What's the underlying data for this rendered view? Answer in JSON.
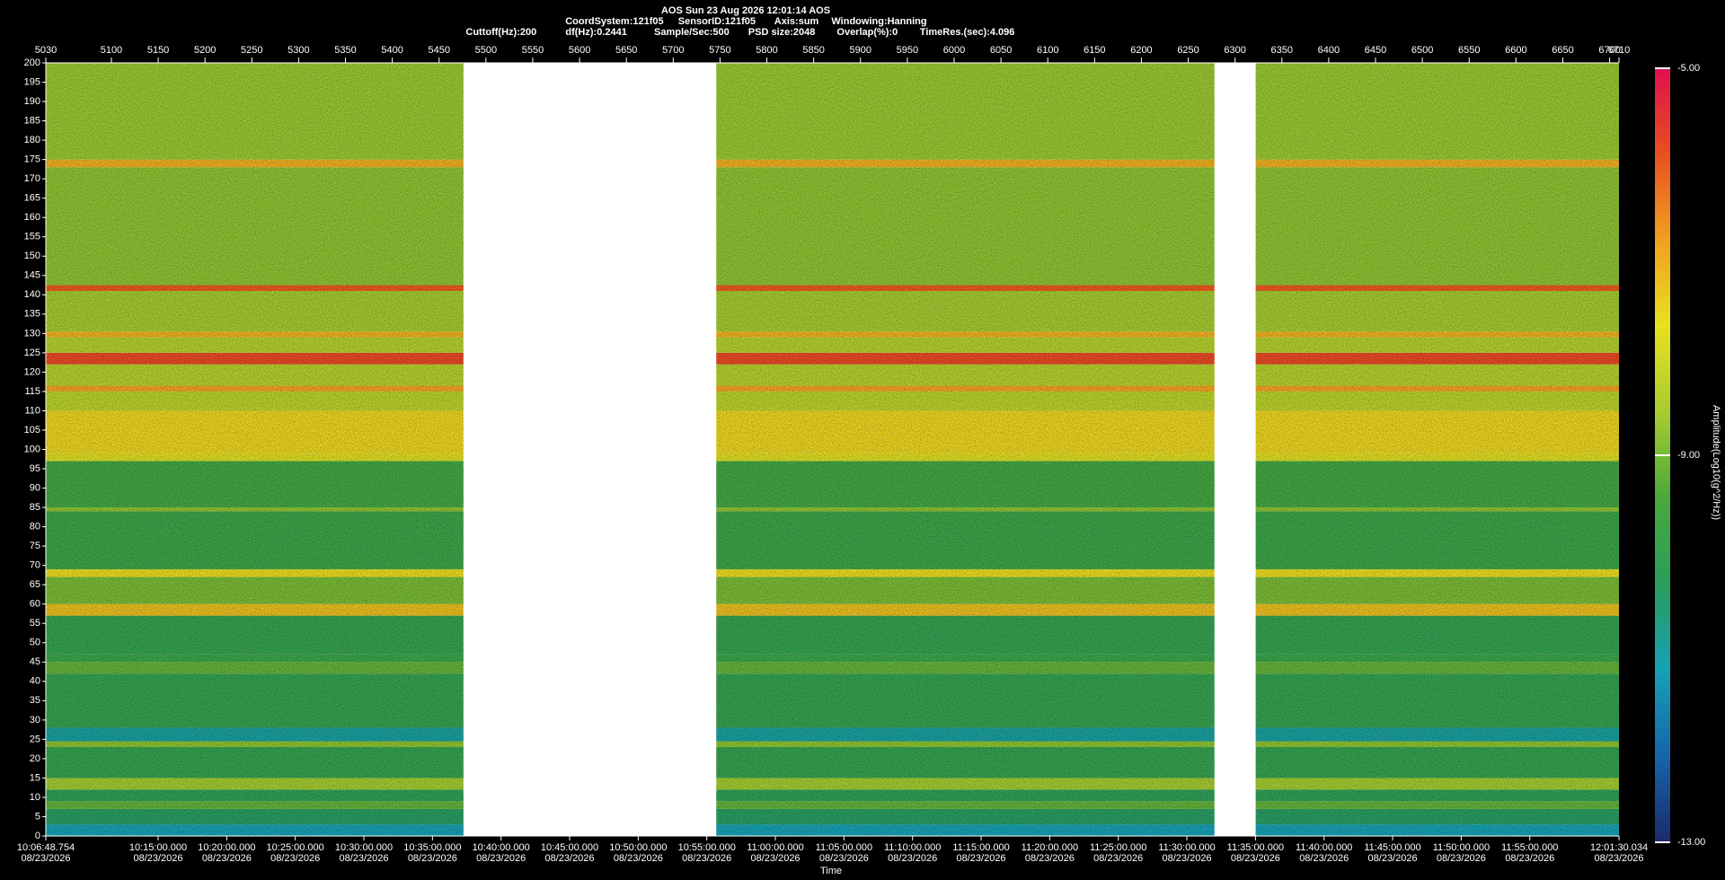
{
  "chart_data": {
    "type": "spectrogram",
    "title": "AOS  Sun 23 Aug 2026 12:01:14  AOS",
    "settings": [
      "CoordSystem:121f05",
      "SensorID:121f05",
      "Axis:sum",
      "Windowing:Hanning"
    ],
    "parameters": [
      "Cuttoff(Hz):200",
      "df(Hz):0.2441",
      "Sample/Sec:500",
      "PSD size:2048",
      "Overlap(%):0",
      "TimeRes.(sec):4.096"
    ],
    "xlabel": "Time",
    "xlim": [
      5030,
      6710
    ],
    "xticks": [
      5030,
      5100,
      5150,
      5200,
      5250,
      5300,
      5350,
      5400,
      5450,
      5500,
      5550,
      5600,
      5650,
      5700,
      5750,
      5800,
      5850,
      5900,
      5950,
      6000,
      6050,
      6100,
      6150,
      6200,
      6250,
      6300,
      6350,
      6400,
      6450,
      6500,
      6550,
      6600,
      6650,
      6700,
      6710
    ],
    "x2ticks": [
      {
        "value": 5030,
        "label": "10:06:48.754",
        "date": "08/23/2026"
      },
      {
        "value": 5149.93,
        "label": "10:15:00.000",
        "date": "08/23/2026"
      },
      {
        "value": 5223.18,
        "label": "10:20:00.000",
        "date": "08/23/2026"
      },
      {
        "value": 5296.42,
        "label": "10:25:00.000",
        "date": "08/23/2026"
      },
      {
        "value": 5369.66,
        "label": "10:30:00.000",
        "date": "08/23/2026"
      },
      {
        "value": 5442.9,
        "label": "10:35:00.000",
        "date": "08/23/2026"
      },
      {
        "value": 5516.14,
        "label": "10:40:00.000",
        "date": "08/23/2026"
      },
      {
        "value": 5589.38,
        "label": "10:45:00.000",
        "date": "08/23/2026"
      },
      {
        "value": 5662.62,
        "label": "10:50:00.000",
        "date": "08/23/2026"
      },
      {
        "value": 5735.87,
        "label": "10:55:00.000",
        "date": "08/23/2026"
      },
      {
        "value": 5809.11,
        "label": "11:00:00.000",
        "date": "08/23/2026"
      },
      {
        "value": 5882.35,
        "label": "11:05:00.000",
        "date": "08/23/2026"
      },
      {
        "value": 5955.59,
        "label": "11:10:00.000",
        "date": "08/23/2026"
      },
      {
        "value": 6028.83,
        "label": "11:15:00.000",
        "date": "08/23/2026"
      },
      {
        "value": 6102.07,
        "label": "11:20:00.000",
        "date": "08/23/2026"
      },
      {
        "value": 6175.31,
        "label": "11:25:00.000",
        "date": "08/23/2026"
      },
      {
        "value": 6248.55,
        "label": "11:30:00.000",
        "date": "08/23/2026"
      },
      {
        "value": 6321.8,
        "label": "11:35:00.000",
        "date": "08/23/2026"
      },
      {
        "value": 6395.04,
        "label": "11:40:00.000",
        "date": "08/23/2026"
      },
      {
        "value": 6468.28,
        "label": "11:45:00.000",
        "date": "08/23/2026"
      },
      {
        "value": 6541.52,
        "label": "11:50:00.000",
        "date": "08/23/2026"
      },
      {
        "value": 6614.76,
        "label": "11:55:00.000",
        "date": "08/23/2026"
      },
      {
        "value": 6710,
        "label": "12:01:30.034",
        "date": "08/23/2026"
      }
    ],
    "ylim": [
      0,
      200
    ],
    "yticks": [
      0,
      5,
      10,
      15,
      20,
      25,
      30,
      35,
      40,
      45,
      50,
      55,
      60,
      65,
      70,
      75,
      80,
      85,
      90,
      95,
      100,
      105,
      110,
      115,
      120,
      125,
      130,
      135,
      140,
      145,
      150,
      155,
      160,
      165,
      170,
      175,
      180,
      185,
      190,
      195,
      200
    ],
    "segments": [
      [
        5030,
        5476
      ],
      [
        5746,
        6278
      ],
      [
        6322,
        6710
      ]
    ],
    "bands": [
      {
        "from": 0,
        "to": 3,
        "value": -11.2
      },
      {
        "from": 3,
        "to": 7,
        "value": -10.4
      },
      {
        "from": 7,
        "to": 9,
        "value": -9.2
      },
      {
        "from": 9,
        "to": 12,
        "value": -10.2
      },
      {
        "from": 12,
        "to": 15,
        "value": -8.6
      },
      {
        "from": 15,
        "to": 23,
        "value": -10
      },
      {
        "from": 23,
        "to": 24.5,
        "value": -8.8
      },
      {
        "from": 24.5,
        "to": 28,
        "value": -11
      },
      {
        "from": 28,
        "to": 42,
        "value": -10
      },
      {
        "from": 42,
        "to": 45,
        "value": -9.2
      },
      {
        "from": 45,
        "to": 47,
        "value": -9.8
      },
      {
        "from": 47,
        "to": 57,
        "value": -10
      },
      {
        "from": 57,
        "to": 60,
        "value": -7.2
      },
      {
        "from": 60,
        "to": 67,
        "value": -9
      },
      {
        "from": 67,
        "to": 69,
        "value": -7.6
      },
      {
        "from": 69,
        "to": 84,
        "value": -9.8
      },
      {
        "from": 84,
        "to": 85,
        "value": -8.8
      },
      {
        "from": 85,
        "to": 97,
        "value": -9.6
      },
      {
        "from": 97,
        "to": 99,
        "value": -7.8
      },
      {
        "from": 99,
        "to": 110,
        "value": -7.5
      },
      {
        "from": 110,
        "to": 115,
        "value": -8.3
      },
      {
        "from": 115,
        "to": 116.5,
        "value": -6.8
      },
      {
        "from": 116.5,
        "to": 122,
        "value": -8.4
      },
      {
        "from": 122,
        "to": 125,
        "value": -5.8
      },
      {
        "from": 125,
        "to": 129,
        "value": -8.4
      },
      {
        "from": 129,
        "to": 130.5,
        "value": -7
      },
      {
        "from": 130.5,
        "to": 141,
        "value": -8.6
      },
      {
        "from": 141,
        "to": 142.5,
        "value": -6
      },
      {
        "from": 142.5,
        "to": 173,
        "value": -8.8
      },
      {
        "from": 173,
        "to": 175,
        "value": -7
      },
      {
        "from": 175,
        "to": 200,
        "value": -8.7
      }
    ],
    "colorbar_label": "Amplitude(Log10(g^2/Hz))",
    "clim": [
      -13,
      -5
    ],
    "cticks": [
      {
        "value": -13,
        "label": "-13.00"
      },
      {
        "value": -9,
        "label": "-9.00"
      },
      {
        "value": -5,
        "label": "-5.00"
      }
    ],
    "colors": [
      "#1b2a6b",
      "#1565a8",
      "#16a0b5",
      "#2a9d5c",
      "#4aa83c",
      "#a8cc30",
      "#e8e020",
      "#f0a020",
      "#e85020",
      "#e0104e"
    ]
  }
}
